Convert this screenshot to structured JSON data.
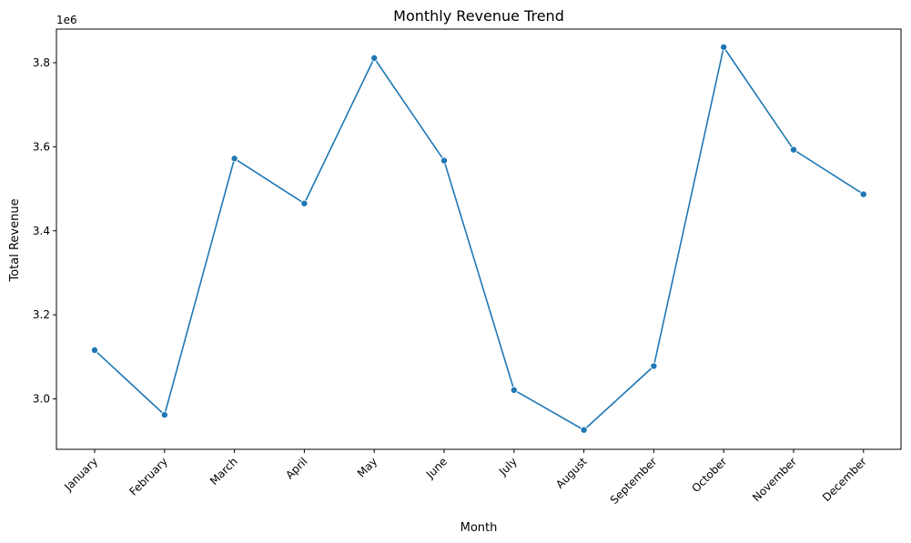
{
  "chart_data": {
    "type": "line",
    "title": "Monthly Revenue Trend",
    "xlabel": "Month",
    "ylabel": "Total Revenue",
    "y_offset_label": "1e6",
    "y_scale": 1000000,
    "categories": [
      "January",
      "February",
      "March",
      "April",
      "May",
      "June",
      "July",
      "August",
      "September",
      "October",
      "November",
      "December"
    ],
    "series": [
      {
        "values": [
          3116000,
          2962000,
          3572000,
          3465000,
          3811000,
          3567000,
          3021000,
          2926000,
          3078000,
          3837000,
          3593000,
          3487000
        ]
      }
    ],
    "ylim": [
      2880000,
      3880000
    ],
    "yticks": [
      3000000,
      3200000,
      3400000,
      3600000,
      3800000
    ],
    "ytick_labels": [
      "3.0",
      "3.2",
      "3.4",
      "3.6",
      "3.8"
    ],
    "grid": false,
    "line_color": "#1f77b4",
    "marker": "circle"
  }
}
